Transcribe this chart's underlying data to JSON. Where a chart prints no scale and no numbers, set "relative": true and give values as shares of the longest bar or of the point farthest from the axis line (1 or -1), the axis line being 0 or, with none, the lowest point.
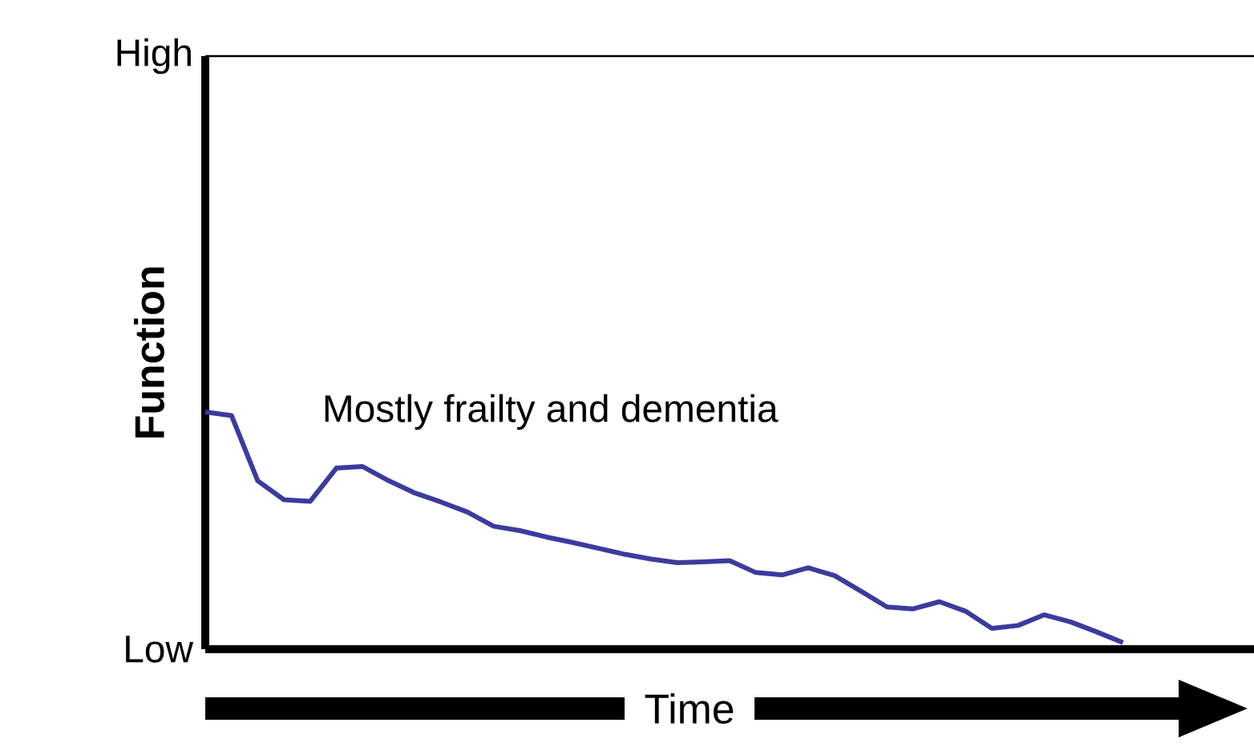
{
  "chart_data": {
    "type": "line",
    "xlabel": "Time",
    "ylabel": "Function",
    "annotations": [
      "High",
      "Mostly frailty and dementia",
      "Low"
    ],
    "relative": true,
    "color": "#3b3b9e",
    "categories": [
      null,
      null,
      null,
      null,
      null,
      null,
      null,
      null,
      null,
      null,
      null,
      null,
      null,
      null,
      null,
      null,
      null,
      null,
      null,
      null,
      null,
      null,
      null,
      null,
      null,
      null,
      null,
      null,
      null,
      null,
      null,
      null,
      null,
      null,
      null,
      null,
      null,
      null,
      null,
      null,
      null
    ],
    "values": [
      1,
      0.985,
      0.71,
      0.63,
      0.623,
      0.763,
      0.77,
      0.71,
      0.658,
      0.62,
      0.578,
      0.518,
      0.5,
      0.473,
      0.45,
      0.425,
      0.4,
      0.38,
      0.365,
      0.368,
      0.373,
      0.323,
      0.313,
      0.343,
      0.31,
      0.245,
      0.178,
      0.17,
      0.2,
      0.16,
      0.088,
      0.1,
      0.145,
      0.115,
      0.073,
      0.028,
      null,
      null,
      null,
      null,
      null
    ]
  }
}
